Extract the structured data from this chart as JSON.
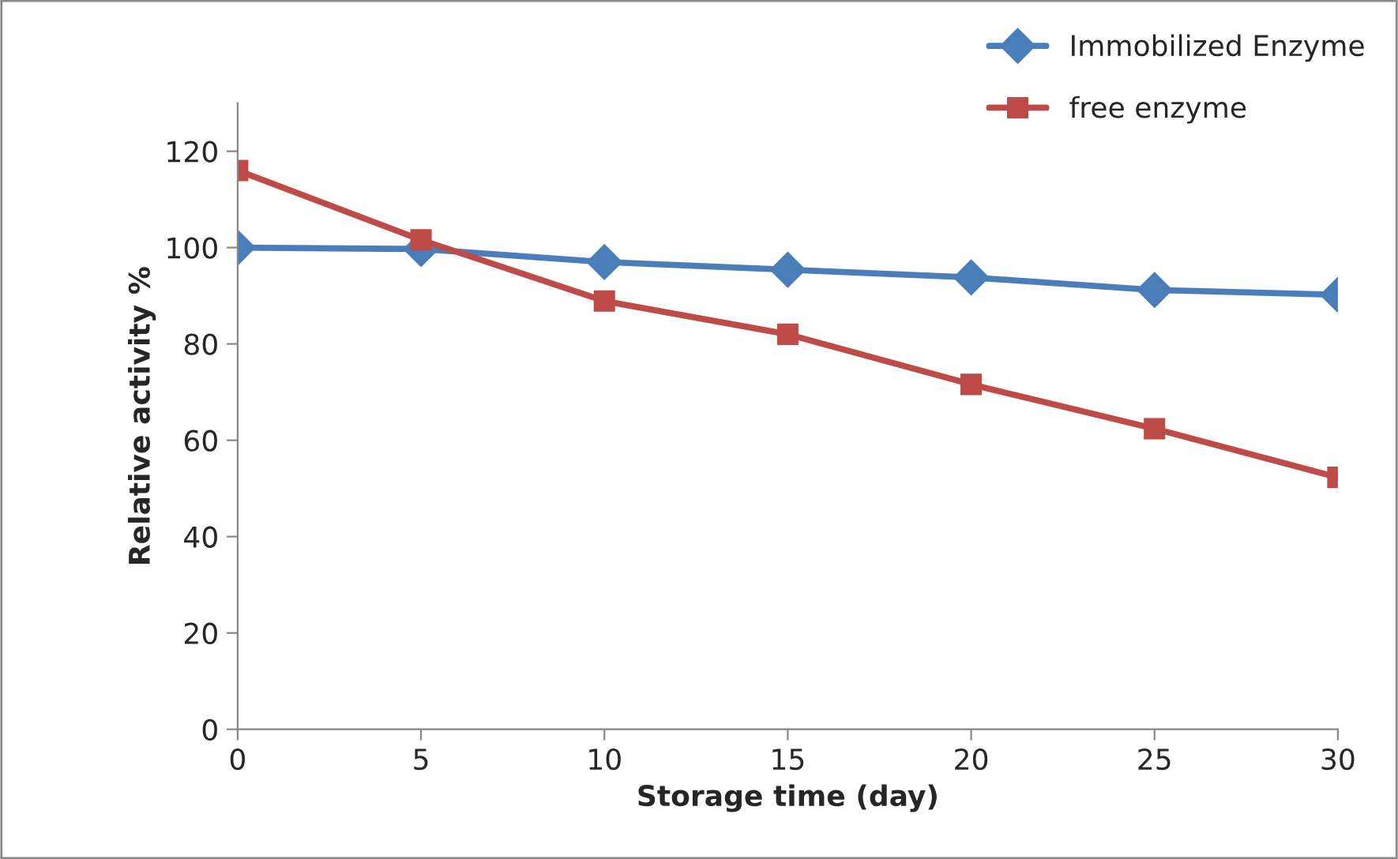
{
  "chart_data": {
    "type": "line",
    "xlabel": "Storage time (day)",
    "ylabel": "Relative activity %",
    "x": [
      0,
      5,
      10,
      15,
      20,
      25,
      30
    ],
    "series": [
      {
        "name": "Immobilized Enzyme",
        "color": "#4a7ebb",
        "marker": "diamond",
        "values": [
          100,
          99.7,
          97,
          95.4,
          93.8,
          91.2,
          90.2
        ]
      },
      {
        "name": "free enzyme",
        "color": "#be4b48",
        "marker": "square",
        "values": [
          116,
          101.6,
          88.9,
          82,
          71.6,
          62.4,
          52.3
        ]
      }
    ],
    "xlim": [
      0,
      30
    ],
    "xticks": [
      0,
      5,
      10,
      15,
      20,
      25,
      30
    ],
    "ylim": [
      0,
      130
    ],
    "yticks": [
      0,
      20,
      40,
      60,
      80,
      100,
      120
    ],
    "grid": false,
    "legend": "top right",
    "line_style": "solid"
  }
}
